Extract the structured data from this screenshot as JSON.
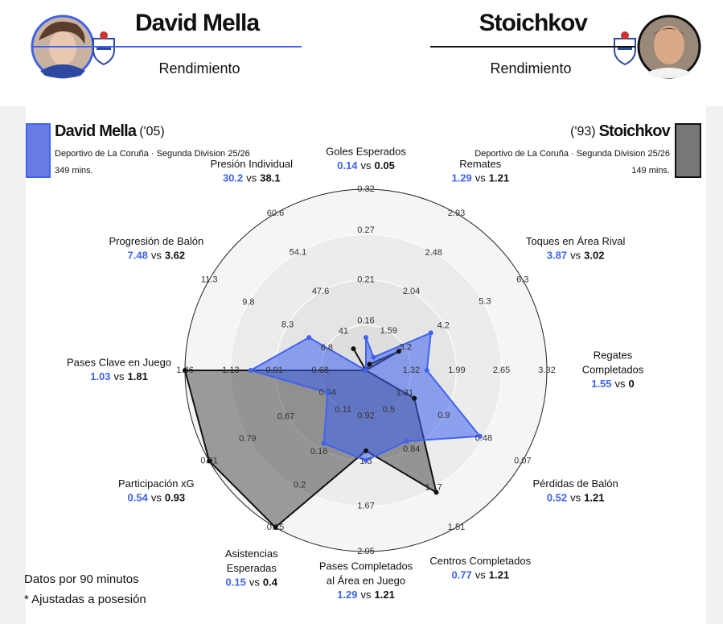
{
  "chart_data": {
    "type": "radar",
    "header_subtitle": "Rendimiento",
    "separator": "vs",
    "series": [
      {
        "name": "David Mella",
        "year": "('05)",
        "team": "Deportivo de La Coruña · Segunda Division 25/26",
        "minutes": "349 mins.",
        "color": "#3f63f0",
        "values": [
          0.14,
          1.29,
          3.87,
          1.55,
          0.52,
          0.77,
          1.29,
          0.15,
          0.54,
          1.03,
          7.48,
          30.2
        ]
      },
      {
        "name": "Stoichkov",
        "year": "('93)",
        "team": "Deportivo de La Coruña · Segunda Division 25/26",
        "minutes": "149 mins.",
        "color": "#111111",
        "values": [
          0.05,
          1.21,
          3.02,
          0,
          1.21,
          1.21,
          1.21,
          0.4,
          0.93,
          1.81,
          3.62,
          38.1
        ]
      }
    ],
    "axes": [
      {
        "name": [
          "Goles Esperados"
        ],
        "rlim": [
          0.1,
          0.32
        ],
        "ticks": [
          0.16,
          0.21,
          0.27,
          0.32
        ]
      },
      {
        "name": [
          "Remates"
        ],
        "rlim": [
          1.14,
          2.93
        ],
        "ticks": [
          1.59,
          2.04,
          2.48,
          2.93
        ]
      },
      {
        "name": [
          "Toques en Área Rival"
        ],
        "rlim": [
          2.15,
          6.3
        ],
        "ticks": [
          3.2,
          4.2,
          5.3,
          6.3
        ]
      },
      {
        "name": [
          "Regates",
          "Completados"
        ],
        "rlim": [
          0.65,
          3.32
        ],
        "ticks": [
          1.32,
          1.99,
          2.65,
          3.32
        ]
      },
      {
        "name": [
          "Pérdidas de Balón"
        ],
        "rlim": [
          1.72,
          0.07
        ],
        "ticks": [
          1.31,
          0.9,
          0.48,
          0.07
        ]
      },
      {
        "name": [
          "Centros Completados"
        ],
        "rlim": [
          0.16,
          1.51
        ],
        "ticks": [
          0.5,
          0.84,
          1.17,
          1.51
        ]
      },
      {
        "name": [
          "Pases Completados",
          "al Área en Juego"
        ],
        "rlim": [
          0.54,
          2.05
        ],
        "ticks": [
          0.92,
          1.3,
          1.67,
          2.05
        ]
      },
      {
        "name": [
          "Asistencias",
          "Esperadas"
        ],
        "rlim": [
          0.063,
          0.25
        ],
        "ticks": [
          0.11,
          0.16,
          0.2,
          0.25
        ]
      },
      {
        "name": [
          "Participación xG"
        ],
        "rlim": [
          0.42,
          0.91
        ],
        "ticks": [
          0.54,
          0.67,
          0.79,
          0.91
        ]
      },
      {
        "name": [
          "Pases Clave en Juego"
        ],
        "rlim": [
          0.45,
          1.36
        ],
        "ticks": [
          0.68,
          0.91,
          1.13,
          1.36
        ]
      },
      {
        "name": [
          "Progresión de Balón"
        ],
        "rlim": [
          5.3,
          11.3
        ],
        "ticks": [
          6.8,
          8.3,
          9.8,
          11.3
        ]
      },
      {
        "name": [
          "Presión Individual"
        ],
        "rlim": [
          34.5,
          60.6
        ],
        "ticks": [
          41,
          47.6,
          54.1,
          60.6
        ]
      }
    ]
  },
  "notes": [
    "Datos por 90 minutos",
    "* Ajustadas a posesión"
  ]
}
